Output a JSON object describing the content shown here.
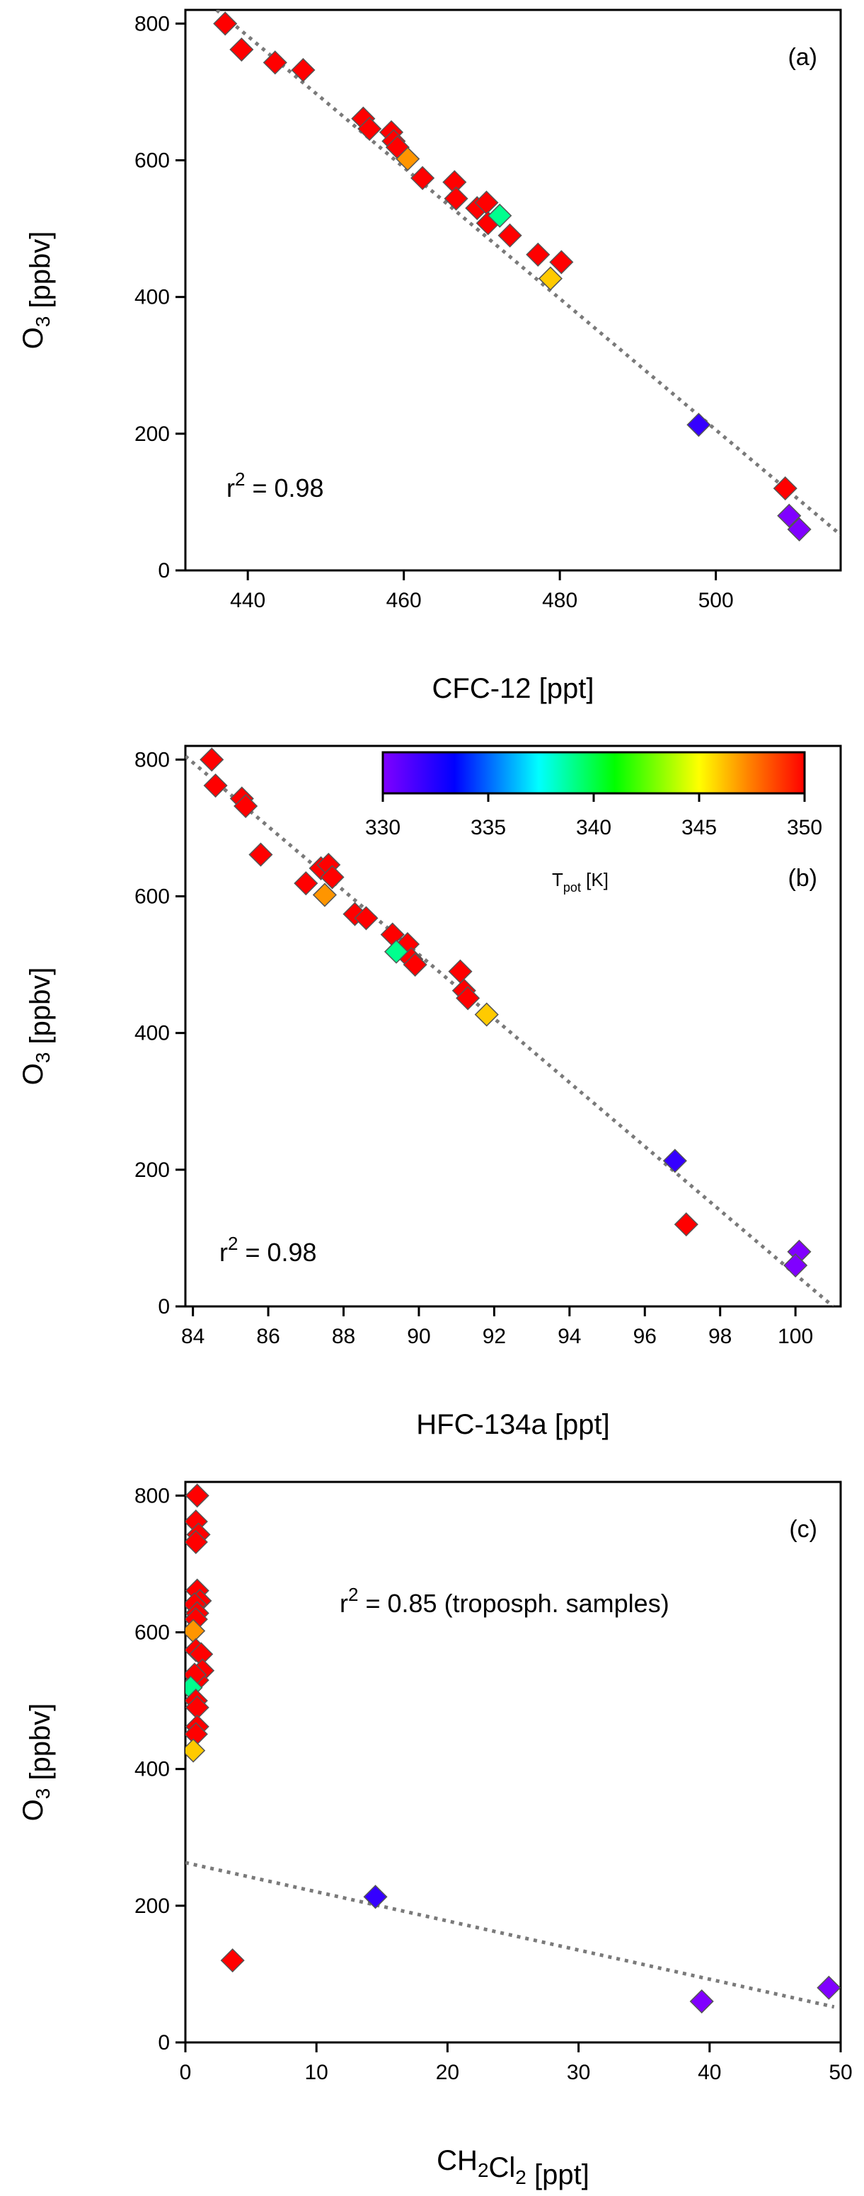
{
  "colorbar": {
    "label": "T",
    "label_sub": "pot",
    "label_unit": " [K]",
    "ticks": [
      330,
      335,
      340,
      345,
      350
    ],
    "min": 330,
    "max": 350
  },
  "chart_data": [
    {
      "type": "scatter",
      "panel_label": "(a)",
      "xlabel": "CFC-12 [ppt]",
      "ylabel": "O3 [ppbv]",
      "xlim": [
        432,
        516
      ],
      "ylim": [
        0,
        820
      ],
      "xticks": [
        440,
        460,
        480,
        500
      ],
      "yticks": [
        0,
        200,
        400,
        600,
        800
      ],
      "annotation": "r2 = 0.98",
      "fit_line": {
        "x": [
          436,
          516
        ],
        "y": [
          820,
          52
        ]
      },
      "points": [
        {
          "x": 437.1,
          "y": 800,
          "t": 350
        },
        {
          "x": 439.2,
          "y": 762,
          "t": 350
        },
        {
          "x": 443.5,
          "y": 743,
          "t": 350
        },
        {
          "x": 447.1,
          "y": 732,
          "t": 350
        },
        {
          "x": 454.8,
          "y": 661,
          "t": 350
        },
        {
          "x": 455.6,
          "y": 646,
          "t": 350
        },
        {
          "x": 458.4,
          "y": 641,
          "t": 350
        },
        {
          "x": 458.7,
          "y": 628,
          "t": 350
        },
        {
          "x": 459.2,
          "y": 619,
          "t": 350
        },
        {
          "x": 460.5,
          "y": 602,
          "t": 347
        },
        {
          "x": 462.4,
          "y": 574,
          "t": 350
        },
        {
          "x": 466.5,
          "y": 568,
          "t": 350
        },
        {
          "x": 466.7,
          "y": 544,
          "t": 350
        },
        {
          "x": 469.4,
          "y": 530,
          "t": 350
        },
        {
          "x": 470.6,
          "y": 538,
          "t": 350
        },
        {
          "x": 470.8,
          "y": 508,
          "t": 350
        },
        {
          "x": 472.3,
          "y": 519,
          "t": 339
        },
        {
          "x": 473.6,
          "y": 490,
          "t": 350
        },
        {
          "x": 477.2,
          "y": 462,
          "t": 350
        },
        {
          "x": 478.8,
          "y": 427,
          "t": 346
        },
        {
          "x": 480.2,
          "y": 451,
          "t": 350
        },
        {
          "x": 497.8,
          "y": 213,
          "t": 332
        },
        {
          "x": 508.9,
          "y": 120,
          "t": 350
        },
        {
          "x": 509.4,
          "y": 80,
          "t": 330
        },
        {
          "x": 510.7,
          "y": 60,
          "t": 330
        }
      ]
    },
    {
      "type": "scatter",
      "panel_label": "(b)",
      "xlabel": "HFC-134a [ppt]",
      "ylabel": "O3 [ppbv]",
      "xlim": [
        83.8,
        101.2
      ],
      "ylim": [
        0,
        820
      ],
      "xticks": [
        84,
        86,
        88,
        90,
        92,
        94,
        96,
        98,
        100
      ],
      "yticks": [
        0,
        200,
        400,
        600,
        800
      ],
      "annotation": "r2 = 0.98",
      "fit_line": {
        "x": [
          83.8,
          101.0
        ],
        "y": [
          805,
          0
        ]
      },
      "points": [
        {
          "x": 84.5,
          "y": 800,
          "t": 350
        },
        {
          "x": 84.6,
          "y": 762,
          "t": 350
        },
        {
          "x": 85.3,
          "y": 743,
          "t": 350
        },
        {
          "x": 85.4,
          "y": 732,
          "t": 350
        },
        {
          "x": 85.8,
          "y": 661,
          "t": 350
        },
        {
          "x": 87.0,
          "y": 619,
          "t": 350
        },
        {
          "x": 87.4,
          "y": 641,
          "t": 350
        },
        {
          "x": 87.6,
          "y": 646,
          "t": 350
        },
        {
          "x": 87.7,
          "y": 628,
          "t": 350
        },
        {
          "x": 87.5,
          "y": 602,
          "t": 347
        },
        {
          "x": 88.3,
          "y": 574,
          "t": 350
        },
        {
          "x": 88.6,
          "y": 568,
          "t": 350
        },
        {
          "x": 89.3,
          "y": 544,
          "t": 350
        },
        {
          "x": 89.7,
          "y": 530,
          "t": 350
        },
        {
          "x": 89.8,
          "y": 508,
          "t": 350
        },
        {
          "x": 89.9,
          "y": 500,
          "t": 350
        },
        {
          "x": 89.4,
          "y": 519,
          "t": 339
        },
        {
          "x": 91.1,
          "y": 490,
          "t": 350
        },
        {
          "x": 91.2,
          "y": 462,
          "t": 350
        },
        {
          "x": 91.3,
          "y": 451,
          "t": 350
        },
        {
          "x": 91.8,
          "y": 427,
          "t": 346
        },
        {
          "x": 96.8,
          "y": 213,
          "t": 332
        },
        {
          "x": 97.1,
          "y": 120,
          "t": 350
        },
        {
          "x": 100.1,
          "y": 80,
          "t": 330
        },
        {
          "x": 100.0,
          "y": 60,
          "t": 330
        }
      ]
    },
    {
      "type": "scatter",
      "panel_label": "(c)",
      "xlabel": "CH2Cl2 [ppt]",
      "ylabel": "O3 [ppbv]",
      "xlim": [
        0,
        50
      ],
      "ylim": [
        0,
        820
      ],
      "xticks": [
        0,
        10,
        20,
        30,
        40,
        50
      ],
      "yticks": [
        0,
        200,
        400,
        600,
        800
      ],
      "annotation": "r2 = 0.85 (troposph. samples)",
      "fit_line": {
        "x": [
          0,
          49.5
        ],
        "y": [
          263,
          52
        ]
      },
      "points": [
        {
          "x": 0.9,
          "y": 800,
          "t": 350
        },
        {
          "x": 0.8,
          "y": 762,
          "t": 350
        },
        {
          "x": 1.0,
          "y": 743,
          "t": 350
        },
        {
          "x": 0.8,
          "y": 732,
          "t": 350
        },
        {
          "x": 0.9,
          "y": 661,
          "t": 350
        },
        {
          "x": 1.1,
          "y": 646,
          "t": 350
        },
        {
          "x": 0.7,
          "y": 641,
          "t": 350
        },
        {
          "x": 0.9,
          "y": 628,
          "t": 350
        },
        {
          "x": 0.8,
          "y": 619,
          "t": 350
        },
        {
          "x": 0.6,
          "y": 602,
          "t": 347
        },
        {
          "x": 0.8,
          "y": 574,
          "t": 350
        },
        {
          "x": 1.2,
          "y": 568,
          "t": 350
        },
        {
          "x": 1.3,
          "y": 544,
          "t": 350
        },
        {
          "x": 0.9,
          "y": 530,
          "t": 350
        },
        {
          "x": 0.7,
          "y": 538,
          "t": 350
        },
        {
          "x": 0.4,
          "y": 519,
          "t": 339
        },
        {
          "x": 0.8,
          "y": 500,
          "t": 350
        },
        {
          "x": 0.9,
          "y": 490,
          "t": 350
        },
        {
          "x": 0.9,
          "y": 462,
          "t": 350
        },
        {
          "x": 0.8,
          "y": 451,
          "t": 350
        },
        {
          "x": 0.6,
          "y": 427,
          "t": 346
        },
        {
          "x": 14.5,
          "y": 213,
          "t": 332
        },
        {
          "x": 3.6,
          "y": 120,
          "t": 350
        },
        {
          "x": 49.1,
          "y": 80,
          "t": 330
        },
        {
          "x": 39.4,
          "y": 60,
          "t": 330
        }
      ]
    }
  ]
}
